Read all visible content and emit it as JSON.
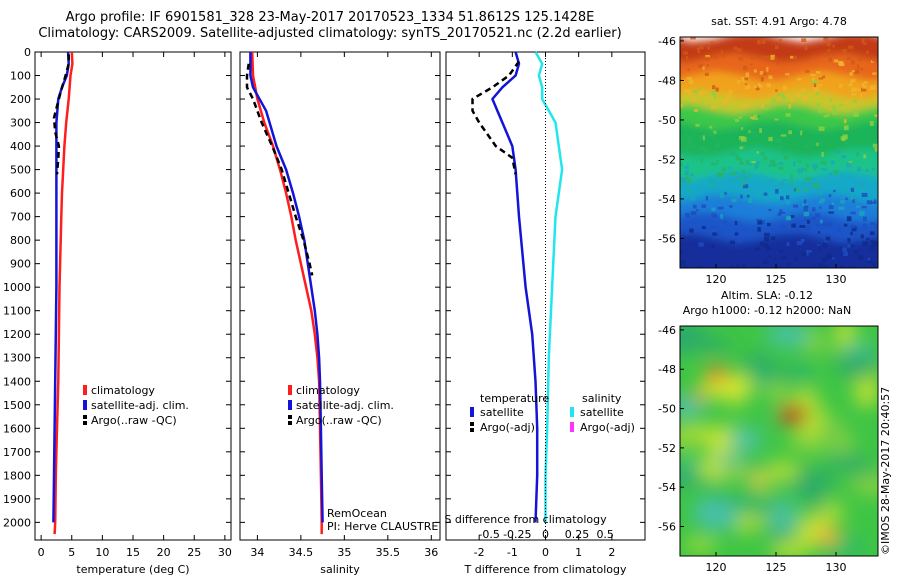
{
  "title": {
    "line1": "Argo profile: IF 6901581_328 23-May-2017 20170523_1334 51.8612S 125.1428E",
    "line2": "Climatology: CARS2009. Satellite-adjusted climatology: synTS_20170521.nc (2.2d earlier)"
  },
  "colors": {
    "climatology": "#ff1e1e",
    "satellite": "#1414d8",
    "argo": "#000000",
    "sat_salinity": "#22e6ee",
    "argo_salinity": "#ff33ff"
  },
  "chart_data": [
    {
      "id": "temperature",
      "type": "line",
      "xlabel": "temperature (deg C)",
      "ylabel": "",
      "xlim": [
        -1,
        31
      ],
      "ylim": [
        2075,
        0
      ],
      "xticks": [
        0,
        5,
        10,
        15,
        20,
        25,
        30
      ],
      "yticks": [
        0,
        100,
        200,
        300,
        400,
        500,
        600,
        700,
        800,
        900,
        1000,
        1100,
        1200,
        1300,
        1400,
        1500,
        1600,
        1700,
        1800,
        1900,
        2000
      ],
      "legend": [
        "climatology",
        "satellite-adj. clim.",
        "Argo(..raw -QC)"
      ],
      "legend_position": "lower-right",
      "series": [
        {
          "name": "climatology",
          "color": "#ff1e1e",
          "dash": "solid",
          "points": [
            [
              5.0,
              0
            ],
            [
              5.1,
              50
            ],
            [
              4.8,
              100
            ],
            [
              4.5,
              200
            ],
            [
              4.1,
              300
            ],
            [
              3.8,
              400
            ],
            [
              3.6,
              500
            ],
            [
              3.4,
              600
            ],
            [
              3.3,
              700
            ],
            [
              3.2,
              800
            ],
            [
              3.1,
              900
            ],
            [
              3.0,
              1000
            ],
            [
              2.9,
              1200
            ],
            [
              2.8,
              1400
            ],
            [
              2.6,
              1600
            ],
            [
              2.4,
              1800
            ],
            [
              2.3,
              2000
            ],
            [
              2.2,
              2050
            ]
          ]
        },
        {
          "name": "satellite-adj. clim.",
          "color": "#1414d8",
          "dash": "solid",
          "points": [
            [
              4.4,
              0
            ],
            [
              4.5,
              50
            ],
            [
              4.2,
              100
            ],
            [
              3.4,
              150
            ],
            [
              2.8,
              200
            ],
            [
              2.5,
              300
            ],
            [
              2.5,
              400
            ],
            [
              2.5,
              500
            ],
            [
              2.5,
              600
            ],
            [
              2.5,
              800
            ],
            [
              2.5,
              1000
            ],
            [
              2.4,
              1200
            ],
            [
              2.3,
              1400
            ],
            [
              2.2,
              1600
            ],
            [
              2.1,
              1800
            ],
            [
              2.0,
              2000
            ]
          ]
        },
        {
          "name": "Argo(..raw -QC)",
          "color": "#000000",
          "dash": "dash",
          "points": [
            [
              4.5,
              10
            ],
            [
              4.5,
              50
            ],
            [
              4.0,
              100
            ],
            [
              3.2,
              170
            ],
            [
              2.6,
              230
            ],
            [
              2.1,
              280
            ],
            [
              2.3,
              340
            ],
            [
              2.9,
              400
            ],
            [
              2.8,
              450
            ],
            [
              2.6,
              520
            ]
          ]
        }
      ],
      "annotations": []
    },
    {
      "id": "salinity",
      "type": "line",
      "xlabel": "salinity",
      "ylabel": "",
      "xlim": [
        33.8,
        36.1
      ],
      "ylim": [
        2075,
        0
      ],
      "xticks": [
        34,
        34.5,
        35,
        35.5,
        36
      ],
      "legend": [
        "climatology",
        "satellite-adj. clim.",
        "Argo(..raw -QC)"
      ],
      "legend_position": "lower-right",
      "series": [
        {
          "name": "climatology",
          "color": "#ff1e1e",
          "dash": "solid",
          "points": [
            [
              33.94,
              0
            ],
            [
              33.95,
              100
            ],
            [
              34.0,
              200
            ],
            [
              34.08,
              300
            ],
            [
              34.18,
              400
            ],
            [
              34.26,
              500
            ],
            [
              34.33,
              600
            ],
            [
              34.39,
              700
            ],
            [
              34.44,
              800
            ],
            [
              34.5,
              900
            ],
            [
              34.56,
              1000
            ],
            [
              34.62,
              1100
            ],
            [
              34.66,
              1200
            ],
            [
              34.69,
              1300
            ],
            [
              34.71,
              1400
            ],
            [
              34.72,
              1600
            ],
            [
              34.73,
              1800
            ],
            [
              34.74,
              2000
            ],
            [
              34.74,
              2050
            ]
          ]
        },
        {
          "name": "satellite-adj. clim.",
          "color": "#1414d8",
          "dash": "solid",
          "points": [
            [
              33.92,
              0
            ],
            [
              33.92,
              100
            ],
            [
              33.95,
              150
            ],
            [
              34.1,
              250
            ],
            [
              34.22,
              400
            ],
            [
              34.33,
              500
            ],
            [
              34.41,
              600
            ],
            [
              34.48,
              700
            ],
            [
              34.54,
              800
            ],
            [
              34.58,
              900
            ],
            [
              34.62,
              1000
            ],
            [
              34.66,
              1100
            ],
            [
              34.69,
              1200
            ],
            [
              34.71,
              1300
            ],
            [
              34.72,
              1400
            ],
            [
              34.73,
              1600
            ],
            [
              34.74,
              1800
            ],
            [
              34.75,
              2000
            ]
          ]
        },
        {
          "name": "Argo(..raw -QC)",
          "color": "#000000",
          "dash": "dash",
          "points": [
            [
              33.9,
              50
            ],
            [
              33.88,
              100
            ],
            [
              33.88,
              150
            ],
            [
              33.95,
              200
            ],
            [
              34.05,
              300
            ],
            [
              34.17,
              400
            ],
            [
              34.28,
              500
            ],
            [
              34.36,
              600
            ],
            [
              34.44,
              700
            ],
            [
              34.53,
              800
            ],
            [
              34.6,
              900
            ],
            [
              34.63,
              950
            ]
          ]
        }
      ],
      "annotations": [
        "RemOcean",
        "PI: Herve CLAUSTRE"
      ]
    },
    {
      "id": "differences",
      "type": "line",
      "xlabel": "T difference from climatology",
      "top_xlabel": "S difference from climatology",
      "ylabel": "",
      "xlim": [
        -3.0,
        3.0
      ],
      "ylim": [
        2075,
        0
      ],
      "xticks": [
        -2,
        -1,
        0,
        1,
        2
      ],
      "top_xticks": [
        "-0.5",
        "-0.25",
        "0",
        "0.25",
        "0.5"
      ],
      "legend_groups": [
        {
          "title": "temperature",
          "items": [
            "satellite",
            "Argo(-adj)"
          ]
        },
        {
          "title": "salinity",
          "items": [
            "satellite",
            "Argo(-adj)"
          ]
        }
      ],
      "series": [
        {
          "name": "satellite",
          "group": "temperature",
          "color": "#1414d8",
          "dash": "solid",
          "points": [
            [
              -0.9,
              0
            ],
            [
              -0.8,
              50
            ],
            [
              -0.9,
              100
            ],
            [
              -1.3,
              150
            ],
            [
              -1.6,
              200
            ],
            [
              -1.3,
              300
            ],
            [
              -1.0,
              400
            ],
            [
              -0.9,
              500
            ],
            [
              -0.8,
              700
            ],
            [
              -0.6,
              1000
            ],
            [
              -0.4,
              1200
            ],
            [
              -0.3,
              1400
            ],
            [
              -0.25,
              1600
            ],
            [
              -0.25,
              1800
            ],
            [
              -0.3,
              2000
            ]
          ]
        },
        {
          "name": "Argo(-adj)",
          "group": "temperature",
          "color": "#000000",
          "dash": "dash",
          "points": [
            [
              -0.8,
              40
            ],
            [
              -1.0,
              80
            ],
            [
              -1.1,
              100
            ],
            [
              -1.6,
              150
            ],
            [
              -2.2,
              200
            ],
            [
              -2.2,
              250
            ],
            [
              -2.0,
              300
            ],
            [
              -1.5,
              400
            ],
            [
              -1.0,
              450
            ],
            [
              -0.9,
              520
            ]
          ]
        },
        {
          "name": "satellite",
          "group": "salinity",
          "color": "#22e6ee",
          "dash": "solid",
          "points": [
            [
              -0.3,
              0
            ],
            [
              -0.1,
              50
            ],
            [
              -0.2,
              100
            ],
            [
              -0.1,
              150
            ],
            [
              -0.1,
              200
            ],
            [
              0.3,
              300
            ],
            [
              0.4,
              400
            ],
            [
              0.5,
              500
            ],
            [
              0.3,
              700
            ],
            [
              0.2,
              1000
            ],
            [
              0.1,
              1300
            ],
            [
              0.05,
              1600
            ],
            [
              0.0,
              1800
            ],
            [
              0.0,
              2000
            ]
          ]
        },
        {
          "name": "Argo(-adj)",
          "group": "salinity",
          "color": "#ff33ff",
          "dash": "solid",
          "points": []
        }
      ],
      "annotations": []
    },
    {
      "id": "sst-map",
      "type": "heatmap",
      "title": "sat. SST: 4.91  Argo: 4.78",
      "xlim": [
        117,
        133.5
      ],
      "ylim": [
        -57.5,
        -45.8
      ],
      "xticks": [
        120,
        125,
        130
      ],
      "yticks": [
        -46,
        -48,
        -50,
        -52,
        -54,
        -56
      ]
    },
    {
      "id": "sla-map",
      "type": "heatmap",
      "title_line1": "Altim. SLA: -0.12",
      "title_line2": "Argo h1000: -0.12  h2000: NaN",
      "xlim": [
        117,
        133.5
      ],
      "ylim": [
        -57.5,
        -45.8
      ],
      "xticks": [
        120,
        125,
        130
      ],
      "yticks": [
        -46,
        -48,
        -50,
        -52,
        -54,
        -56
      ]
    }
  ],
  "copyright": "©IMOS 28-May-2017 20:40:57"
}
